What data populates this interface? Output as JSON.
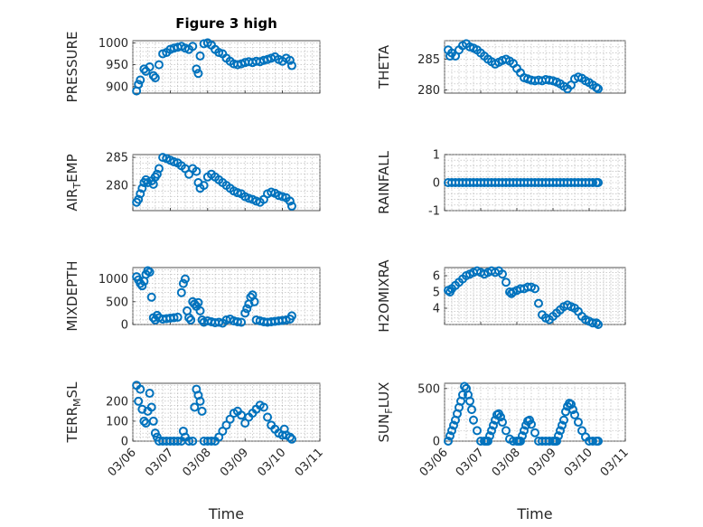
{
  "chart_data": [
    {
      "id": "pressure",
      "type": "scatter",
      "title": "Figure 3 high",
      "ylabel": "PRESSURE",
      "ylim": [
        885,
        1005
      ],
      "yticks": [
        900,
        950,
        1000
      ],
      "xlim": [
        0,
        5
      ],
      "xticks": [
        "03/06",
        "03/07",
        "03/08",
        "03/09",
        "03/10",
        "03/11"
      ],
      "xtick_labels_shown": false,
      "grid": true,
      "color": "#0072BD",
      "x": [
        0.1,
        0.15,
        0.2,
        0.3,
        0.35,
        0.45,
        0.55,
        0.6,
        0.7,
        0.8,
        0.9,
        1.0,
        1.1,
        1.2,
        1.3,
        1.4,
        1.5,
        1.6,
        1.7,
        1.75,
        1.8,
        1.9,
        2.0,
        2.1,
        2.2,
        2.3,
        2.4,
        2.5,
        2.6,
        2.7,
        2.8,
        2.9,
        3.0,
        3.1,
        3.2,
        3.3,
        3.4,
        3.5,
        3.6,
        3.7,
        3.8,
        3.9,
        4.0,
        4.1,
        4.2,
        4.25
      ],
      "y": [
        890,
        905,
        915,
        940,
        935,
        945,
        925,
        920,
        950,
        975,
        978,
        985,
        988,
        990,
        992,
        988,
        985,
        992,
        940,
        930,
        970,
        998,
        1000,
        995,
        985,
        978,
        975,
        965,
        958,
        952,
        950,
        952,
        955,
        957,
        955,
        958,
        957,
        960,
        962,
        965,
        968,
        962,
        958,
        965,
        960,
        948
      ]
    },
    {
      "id": "theta",
      "type": "scatter",
      "title": "",
      "ylabel": "THETA",
      "ylim": [
        279.5,
        288
      ],
      "yticks": [
        280,
        285
      ],
      "xlim": [
        0,
        5
      ],
      "xticks": [
        "03/06",
        "03/07",
        "03/08",
        "03/09",
        "03/10",
        "03/11"
      ],
      "xtick_labels_shown": false,
      "grid": true,
      "color": "#0072BD",
      "x": [
        0.1,
        0.15,
        0.2,
        0.3,
        0.4,
        0.5,
        0.6,
        0.7,
        0.8,
        0.9,
        1.0,
        1.1,
        1.2,
        1.3,
        1.4,
        1.5,
        1.6,
        1.7,
        1.8,
        1.9,
        2.0,
        2.1,
        2.2,
        2.3,
        2.4,
        2.5,
        2.6,
        2.7,
        2.8,
        2.9,
        3.0,
        3.1,
        3.2,
        3.3,
        3.4,
        3.5,
        3.6,
        3.7,
        3.8,
        3.9,
        4.0,
        4.1,
        4.2,
        4.25
      ],
      "y": [
        286.5,
        285.5,
        286,
        285.5,
        286.5,
        287.2,
        287.5,
        287,
        286.8,
        286.5,
        286,
        285.5,
        285,
        284.6,
        284.2,
        284.5,
        284.8,
        285,
        284.7,
        284.3,
        283.5,
        282.8,
        282,
        281.8,
        281.6,
        281.5,
        281.6,
        281.5,
        281.7,
        281.6,
        281.5,
        281.3,
        281,
        280.6,
        280.2,
        280.8,
        281.8,
        282.1,
        281.9,
        281.5,
        281.2,
        280.8,
        280.4,
        280.2
      ]
    },
    {
      "id": "air_temp",
      "type": "scatter",
      "title": "",
      "ylabel": "AIR_TEMP",
      "ylim": [
        275.5,
        285.5
      ],
      "yticks": [
        280,
        285
      ],
      "xlim": [
        0,
        5
      ],
      "xticks": [
        "03/06",
        "03/07",
        "03/08",
        "03/09",
        "03/10",
        "03/11"
      ],
      "xtick_labels_shown": false,
      "grid": true,
      "color": "#0072BD",
      "x": [
        0.1,
        0.15,
        0.2,
        0.25,
        0.3,
        0.35,
        0.4,
        0.5,
        0.55,
        0.6,
        0.65,
        0.7,
        0.8,
        0.9,
        1.0,
        1.1,
        1.2,
        1.3,
        1.4,
        1.5,
        1.6,
        1.7,
        1.75,
        1.8,
        1.9,
        2.0,
        2.1,
        2.2,
        2.3,
        2.4,
        2.5,
        2.6,
        2.7,
        2.8,
        2.9,
        3.0,
        3.1,
        3.2,
        3.3,
        3.4,
        3.5,
        3.6,
        3.7,
        3.8,
        3.9,
        4.0,
        4.1,
        4.2,
        4.25
      ],
      "y": [
        277,
        277.5,
        278.5,
        279.5,
        280.5,
        281,
        280.5,
        280.8,
        280.2,
        281.5,
        282,
        283,
        285,
        284.8,
        284.5,
        284.2,
        284,
        283.5,
        283,
        282,
        283,
        282.5,
        280.5,
        279.5,
        280,
        281.5,
        282,
        281.5,
        281,
        280.5,
        280,
        279.5,
        279,
        278.7,
        278.5,
        278,
        277.7,
        277.5,
        277.2,
        277,
        277.5,
        278.5,
        278.8,
        278.6,
        278.2,
        278,
        277.8,
        277.2,
        276.3
      ]
    },
    {
      "id": "rainfall",
      "type": "scatter",
      "title": "",
      "ylabel": "RAINFALL",
      "ylim": [
        -1,
        1
      ],
      "yticks": [
        -1,
        0,
        1
      ],
      "xlim": [
        0,
        5
      ],
      "xticks": [
        "03/06",
        "03/07",
        "03/08",
        "03/09",
        "03/10",
        "03/11"
      ],
      "xtick_labels_shown": false,
      "grid": true,
      "color": "#0072BD",
      "x": [
        0.1,
        0.2,
        0.3,
        0.4,
        0.5,
        0.6,
        0.7,
        0.8,
        0.9,
        1.0,
        1.1,
        1.2,
        1.3,
        1.4,
        1.5,
        1.6,
        1.7,
        1.8,
        1.9,
        2.0,
        2.1,
        2.2,
        2.3,
        2.4,
        2.5,
        2.6,
        2.7,
        2.8,
        2.9,
        3.0,
        3.1,
        3.2,
        3.3,
        3.4,
        3.5,
        3.6,
        3.7,
        3.8,
        3.9,
        4.0,
        4.1,
        4.2,
        4.25
      ],
      "y": [
        0,
        0,
        0,
        0,
        0,
        0,
        0,
        0,
        0,
        0,
        0,
        0,
        0,
        0,
        0,
        0,
        0,
        0,
        0,
        0,
        0,
        0,
        0,
        0,
        0,
        0,
        0,
        0,
        0,
        0,
        0,
        0,
        0,
        0,
        0,
        0,
        0,
        0,
        0,
        0,
        0,
        0,
        0
      ]
    },
    {
      "id": "mixdepth",
      "type": "scatter",
      "title": "",
      "ylabel": "MIXDEPTH",
      "ylim": [
        0,
        1250
      ],
      "yticks": [
        0,
        500,
        1000
      ],
      "xlim": [
        0,
        5
      ],
      "xticks": [
        "03/06",
        "03/07",
        "03/08",
        "03/09",
        "03/10",
        "03/11"
      ],
      "xtick_labels_shown": false,
      "grid": true,
      "color": "#0072BD",
      "x": [
        0.1,
        0.15,
        0.2,
        0.25,
        0.3,
        0.35,
        0.4,
        0.45,
        0.5,
        0.55,
        0.6,
        0.65,
        0.7,
        0.8,
        0.9,
        1.0,
        1.1,
        1.2,
        1.3,
        1.35,
        1.4,
        1.45,
        1.5,
        1.55,
        1.6,
        1.65,
        1.7,
        1.75,
        1.8,
        1.85,
        1.9,
        2.0,
        2.1,
        2.2,
        2.3,
        2.4,
        2.5,
        2.6,
        2.7,
        2.8,
        2.9,
        3.0,
        3.05,
        3.1,
        3.15,
        3.2,
        3.25,
        3.3,
        3.4,
        3.5,
        3.6,
        3.7,
        3.8,
        3.9,
        4.0,
        4.1,
        4.2,
        4.25
      ],
      "y": [
        1050,
        980,
        900,
        850,
        950,
        1100,
        1180,
        1150,
        600,
        150,
        100,
        200,
        150,
        120,
        130,
        140,
        150,
        160,
        700,
        900,
        1000,
        300,
        150,
        100,
        500,
        450,
        400,
        480,
        300,
        100,
        50,
        80,
        60,
        40,
        50,
        30,
        100,
        120,
        80,
        60,
        50,
        250,
        350,
        450,
        600,
        650,
        500,
        100,
        80,
        60,
        50,
        60,
        70,
        80,
        90,
        100,
        120,
        190
      ]
    },
    {
      "id": "h2omixra",
      "type": "scatter",
      "title": "",
      "ylabel": "H2OMIXRA",
      "ylim": [
        3,
        6.5
      ],
      "yticks": [
        4,
        5,
        6
      ],
      "xlim": [
        0,
        5
      ],
      "xticks": [
        "03/06",
        "03/07",
        "03/08",
        "03/09",
        "03/10",
        "03/11"
      ],
      "xtick_labels_shown": false,
      "grid": true,
      "color": "#0072BD",
      "x": [
        0.1,
        0.15,
        0.2,
        0.3,
        0.4,
        0.5,
        0.6,
        0.7,
        0.8,
        0.9,
        1.0,
        1.1,
        1.2,
        1.3,
        1.4,
        1.5,
        1.6,
        1.7,
        1.8,
        1.85,
        1.9,
        2.0,
        2.1,
        2.2,
        2.3,
        2.4,
        2.5,
        2.6,
        2.7,
        2.8,
        2.9,
        3.0,
        3.1,
        3.2,
        3.3,
        3.4,
        3.5,
        3.6,
        3.7,
        3.8,
        3.9,
        4.0,
        4.1,
        4.2,
        4.25
      ],
      "y": [
        5.1,
        5.0,
        5.2,
        5.4,
        5.6,
        5.8,
        6.0,
        6.1,
        6.2,
        6.3,
        6.2,
        6.1,
        6.2,
        6.3,
        6.2,
        6.3,
        6.1,
        5.6,
        5.0,
        4.9,
        5.0,
        5.1,
        5.2,
        5.2,
        5.3,
        5.3,
        5.2,
        4.3,
        3.6,
        3.4,
        3.3,
        3.5,
        3.7,
        3.9,
        4.1,
        4.2,
        4.1,
        4.0,
        3.8,
        3.5,
        3.3,
        3.2,
        3.1,
        3.1,
        3.0
      ]
    },
    {
      "id": "terr_msl",
      "type": "scatter",
      "title": "",
      "ylabel": "TERR_MSL",
      "ylim": [
        0,
        290
      ],
      "yticks": [
        0,
        100,
        200
      ],
      "xlim": [
        0,
        5
      ],
      "xticks": [
        "03/06",
        "03/07",
        "03/08",
        "03/09",
        "03/10",
        "03/11"
      ],
      "xtick_labels_shown": true,
      "xlabel": "Time",
      "grid": true,
      "color": "#0072BD",
      "x": [
        0.1,
        0.15,
        0.2,
        0.25,
        0.3,
        0.35,
        0.4,
        0.45,
        0.5,
        0.55,
        0.6,
        0.65,
        0.7,
        0.8,
        0.9,
        1.0,
        1.1,
        1.2,
        1.3,
        1.35,
        1.4,
        1.5,
        1.6,
        1.65,
        1.7,
        1.75,
        1.8,
        1.85,
        1.9,
        2.0,
        2.1,
        2.2,
        2.3,
        2.4,
        2.5,
        2.6,
        2.7,
        2.8,
        2.9,
        3.0,
        3.1,
        3.2,
        3.3,
        3.4,
        3.5,
        3.6,
        3.7,
        3.8,
        3.9,
        4.0,
        4.05,
        4.1,
        4.2,
        4.25
      ],
      "y": [
        280,
        200,
        260,
        160,
        100,
        90,
        150,
        240,
        170,
        100,
        40,
        20,
        0,
        0,
        0,
        0,
        0,
        0,
        0,
        50,
        20,
        0,
        0,
        170,
        260,
        230,
        200,
        150,
        0,
        0,
        0,
        0,
        20,
        50,
        80,
        110,
        140,
        150,
        130,
        90,
        120,
        140,
        160,
        180,
        170,
        120,
        80,
        60,
        40,
        30,
        60,
        30,
        20,
        10
      ]
    },
    {
      "id": "sun_flux",
      "type": "scatter",
      "title": "",
      "ylabel": "SUN_FLUX",
      "ylim": [
        0,
        550
      ],
      "yticks": [
        0,
        500
      ],
      "xlim": [
        0,
        5
      ],
      "xticks": [
        "03/06",
        "03/07",
        "03/08",
        "03/09",
        "03/10",
        "03/11"
      ],
      "xtick_labels_shown": true,
      "xlabel": "Time",
      "grid": true,
      "color": "#0072BD",
      "x": [
        0.1,
        0.15,
        0.2,
        0.25,
        0.3,
        0.35,
        0.4,
        0.45,
        0.5,
        0.55,
        0.6,
        0.65,
        0.7,
        0.75,
        0.8,
        0.9,
        1.0,
        1.1,
        1.15,
        1.2,
        1.25,
        1.3,
        1.35,
        1.4,
        1.45,
        1.5,
        1.55,
        1.6,
        1.7,
        1.8,
        1.9,
        2.0,
        2.05,
        2.1,
        2.15,
        2.2,
        2.25,
        2.3,
        2.35,
        2.4,
        2.5,
        2.6,
        2.7,
        2.8,
        2.9,
        3.0,
        3.05,
        3.1,
        3.15,
        3.2,
        3.25,
        3.3,
        3.35,
        3.4,
        3.45,
        3.5,
        3.55,
        3.6,
        3.7,
        3.8,
        3.9,
        4.0,
        4.1,
        4.2,
        4.25
      ],
      "y": [
        0,
        50,
        100,
        150,
        200,
        260,
        320,
        380,
        440,
        520,
        500,
        440,
        380,
        300,
        200,
        100,
        0,
        0,
        0,
        0,
        50,
        100,
        150,
        200,
        250,
        260,
        230,
        180,
        100,
        20,
        0,
        0,
        0,
        0,
        50,
        100,
        150,
        190,
        200,
        160,
        80,
        0,
        0,
        0,
        0,
        0,
        0,
        0,
        50,
        100,
        150,
        200,
        280,
        330,
        360,
        350,
        300,
        250,
        180,
        100,
        40,
        0,
        0,
        0,
        0
      ]
    }
  ]
}
